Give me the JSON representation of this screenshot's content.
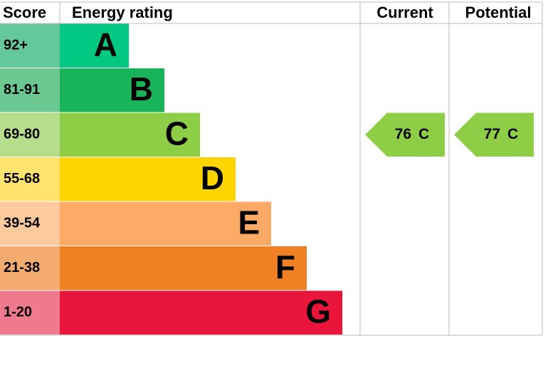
{
  "header": {
    "score": "Score",
    "rating": "Energy rating",
    "current": "Current",
    "potential": "Potential"
  },
  "rows": [
    {
      "score": "92+",
      "letter": "A",
      "color": "#00c781",
      "score_color": "#63c99c"
    },
    {
      "score": "81-91",
      "letter": "B",
      "color": "#19b459",
      "score_color": "#6ac890"
    },
    {
      "score": "69-80",
      "letter": "C",
      "color": "#8dce46",
      "score_color": "#b5dd8b"
    },
    {
      "score": "55-68",
      "letter": "D",
      "color": "#ffd500",
      "score_color": "#ffe36c"
    },
    {
      "score": "39-54",
      "letter": "E",
      "color": "#fcaa65",
      "score_color": "#fdca9d"
    },
    {
      "score": "21-38",
      "letter": "F",
      "color": "#ef8023",
      "score_color": "#f4ab70"
    },
    {
      "score": "1-20",
      "letter": "G",
      "color": "#e9153b",
      "score_color": "#f07a8d"
    }
  ],
  "current": {
    "value": 76,
    "letter": "C"
  },
  "potential": {
    "value": 77,
    "letter": "C"
  }
}
